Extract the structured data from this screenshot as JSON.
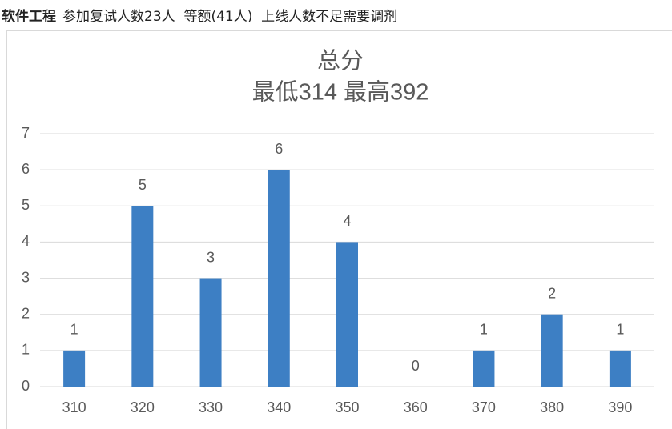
{
  "header": {
    "major": "软件工程",
    "info": "参加复试人数23人  等额(41人)  上线人数不足需要调剂"
  },
  "chart_data": {
    "type": "bar",
    "title": "总分",
    "subtitle": "最低314 最高392",
    "categories": [
      "310",
      "320",
      "330",
      "340",
      "350",
      "360",
      "370",
      "380",
      "390"
    ],
    "values": [
      1,
      5,
      3,
      6,
      4,
      0,
      1,
      2,
      1
    ],
    "color": "#3d7fc4",
    "ylim": [
      0,
      7
    ],
    "yticks": [
      0,
      1,
      2,
      3,
      4,
      5,
      6,
      7
    ],
    "grid": true
  }
}
